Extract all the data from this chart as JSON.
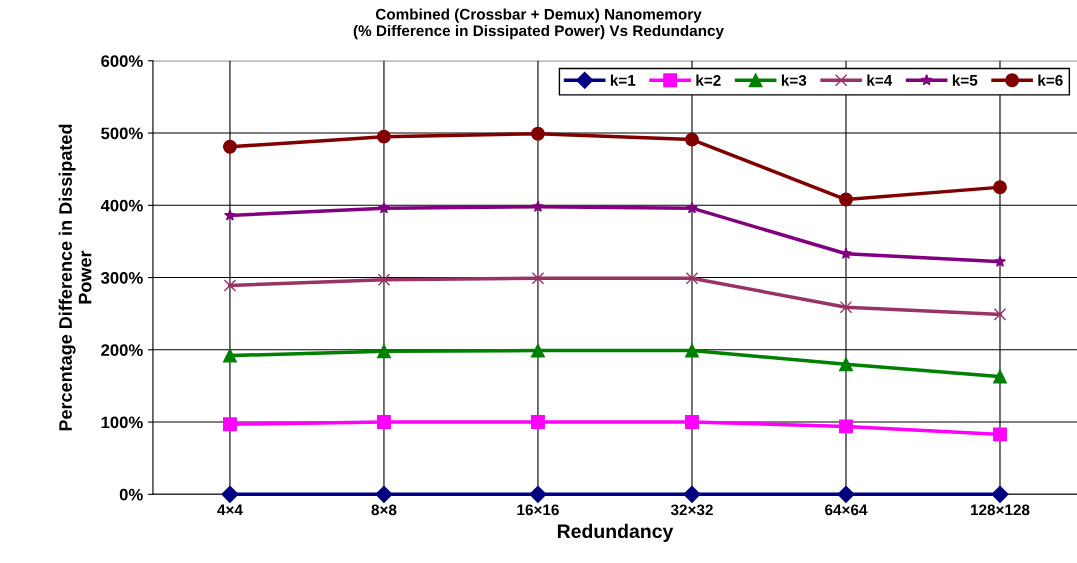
{
  "chart_data": {
    "type": "line",
    "title": "Combined (Crossbar + Demux) Nanomemory\n(% Difference in Dissipated Power) Vs Redundancy",
    "xlabel": "Redundancy",
    "ylabel": "Percentage Difference in Dissipated\nPower",
    "categories": [
      "4×4",
      "8×8",
      "16×16",
      "32×32",
      "64×64",
      "128×128"
    ],
    "series": [
      {
        "name": "k=1",
        "color": "#000080",
        "marker": "diamond",
        "values": [
          0,
          0,
          0,
          0,
          0,
          0
        ]
      },
      {
        "name": "k=2",
        "color": "#ff00ff",
        "marker": "square",
        "values": [
          97,
          100,
          100,
          100,
          94,
          83
        ]
      },
      {
        "name": "k=3",
        "color": "#008000",
        "marker": "triangle",
        "values": [
          192,
          198,
          199,
          199,
          180,
          163
        ]
      },
      {
        "name": "k=4",
        "color": "#993366",
        "marker": "cross",
        "values": [
          289,
          297,
          299,
          299,
          259,
          249
        ]
      },
      {
        "name": "k=5",
        "color": "#800080",
        "marker": "star",
        "values": [
          386,
          396,
          398,
          396,
          333,
          322
        ]
      },
      {
        "name": "k=6",
        "color": "#800000",
        "marker": "circle",
        "values": [
          481,
          495,
          499,
          491,
          408,
          425
        ]
      }
    ],
    "ylim": [
      0,
      600
    ],
    "yticks": [
      {
        "value": 0,
        "label": "0%"
      },
      {
        "value": 100,
        "label": "100%"
      },
      {
        "value": 200,
        "label": "200%"
      },
      {
        "value": 300,
        "label": "300%"
      },
      {
        "value": 400,
        "label": "400%"
      },
      {
        "value": 500,
        "label": "500%"
      },
      {
        "value": 600,
        "label": "600%"
      }
    ],
    "grid": true,
    "legend": "top right",
    "line_style": "solid"
  }
}
